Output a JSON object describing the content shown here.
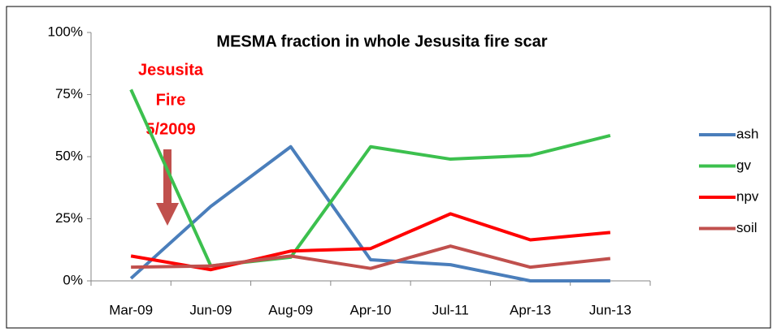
{
  "chart_data": {
    "type": "line",
    "title": "MESMA fraction in whole Jesusita fire scar",
    "annotation": [
      "Jesusita",
      "Fire",
      "5/2009"
    ],
    "categories": [
      "Mar-09",
      "Jun-09",
      "Aug-09",
      "Apr-10",
      "Jul-11",
      "Apr-13",
      "Jun-13"
    ],
    "series": [
      {
        "name": "ash",
        "color": "#4a7ebb",
        "values": [
          1,
          30,
          54,
          8.5,
          6.5,
          0,
          0
        ]
      },
      {
        "name": "gv",
        "color": "#3cc04e",
        "values": [
          77,
          6,
          9.5,
          54,
          49,
          50.5,
          58.5
        ]
      },
      {
        "name": "npv",
        "color": "#ff0000",
        "values": [
          10,
          4.5,
          12,
          13,
          27,
          16.5,
          19.5
        ]
      },
      {
        "name": "soil",
        "color": "#c0504d",
        "values": [
          5.5,
          6,
          10,
          5,
          14,
          5.5,
          9
        ]
      }
    ],
    "ylim": [
      0,
      100
    ],
    "yticks": [
      {
        "value": 0,
        "label": "0%"
      },
      {
        "value": 25,
        "label": "25%"
      },
      {
        "value": 50,
        "label": "50%"
      },
      {
        "value": 75,
        "label": "75%"
      },
      {
        "value": 100,
        "label": "100%"
      }
    ],
    "grid": false,
    "legend": "right"
  }
}
